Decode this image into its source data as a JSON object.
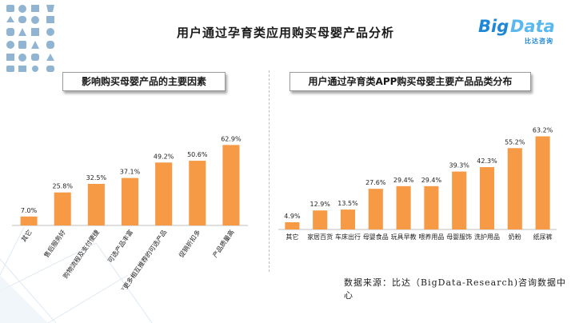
{
  "page": {
    "title": "用户通过孕育类应用购买母婴产品分析",
    "logo": {
      "big": "Big",
      "data": "Data",
      "sub": "比达咨询"
    },
    "source": "数据来源：比达（BigData-Research)咨询数据中心",
    "colors": {
      "bar": "#f79a46",
      "title": "#1a1a1a",
      "logo": "#1e88d6"
    }
  },
  "chart_data": [
    {
      "type": "bar",
      "title": "影响购买母婴产品的主要因素",
      "categories": [
        "其它",
        "售后服务好",
        "购物流程及支付便捷",
        "可选产品丰富",
        "有更多相互推荐的可选产品",
        "促销折扣多",
        "产品质量高"
      ],
      "values": [
        7.0,
        25.8,
        32.5,
        37.1,
        49.2,
        50.6,
        62.9
      ],
      "value_labels": [
        "7.0%",
        "25.8%",
        "32.5%",
        "37.1%",
        "49.2%",
        "50.6%",
        "62.9%"
      ],
      "unit": "%",
      "ylim": [
        0,
        70
      ],
      "grid": false,
      "tick_rotation": -55
    },
    {
      "type": "bar",
      "title": "用户通过孕育类APP购买母婴主要产品品类分布",
      "categories": [
        "其它",
        "家居百货",
        "车床出行",
        "母婴食品",
        "玩具早教",
        "喂养用品",
        "母婴服饰",
        "洗护用品",
        "奶粉",
        "纸尿裤"
      ],
      "values": [
        4.9,
        12.9,
        13.5,
        27.6,
        29.4,
        29.4,
        39.3,
        42.3,
        55.2,
        63.2
      ],
      "value_labels": [
        "4.9%",
        "12.9%",
        "13.5%",
        "27.6%",
        "29.4%",
        "29.4%",
        "39.3%",
        "42.3%",
        "55.2%",
        "63.2%"
      ],
      "unit": "%",
      "ylim": [
        0,
        70
      ],
      "grid": false,
      "tick_rotation": 0
    }
  ]
}
